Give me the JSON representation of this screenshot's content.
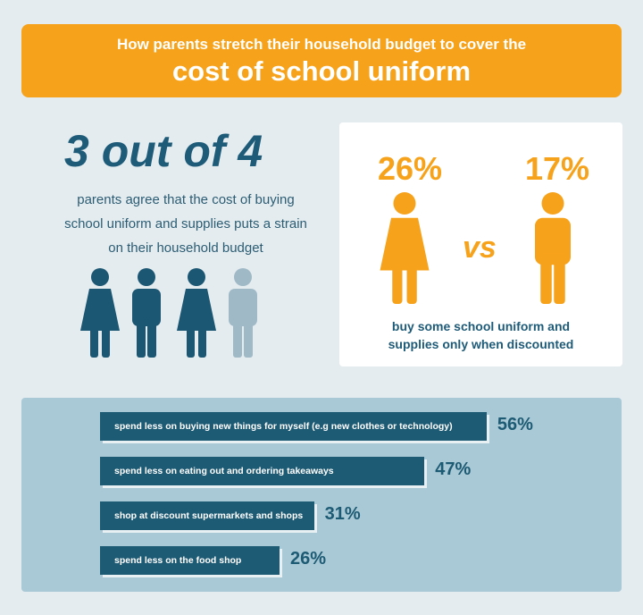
{
  "header": {
    "subtitle": "How parents stretch their household budget to cover the",
    "title": "cost of school uniform"
  },
  "stat": {
    "headline": "3 out of 4",
    "lines": [
      "parents agree that the cost of buying",
      "school uniform and supplies puts a strain",
      "on their household budget"
    ]
  },
  "comparison": {
    "female": "26%",
    "vs": "vs",
    "male": "17%",
    "caption": [
      "buy some school uniform and",
      "supplies only when discounted"
    ]
  },
  "bars": {
    "items": [
      {
        "label": "spend less on buying new things for myself (e.g new clothes or technology)",
        "value": 56,
        "value_label": "56%"
      },
      {
        "label": "spend less on eating out and ordering takeaways",
        "value": 47,
        "value_label": "47%"
      },
      {
        "label": "shop at discount supermarkets and shops",
        "value": 31,
        "value_label": "31%"
      },
      {
        "label": "spend less on the food shop",
        "value": 26,
        "value_label": "26%"
      }
    ]
  }
}
